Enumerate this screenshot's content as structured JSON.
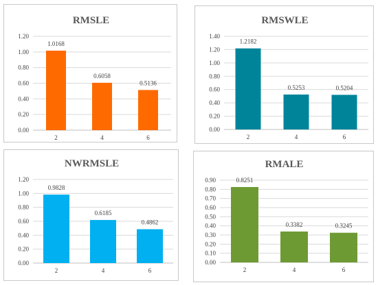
{
  "chart_data": [
    {
      "type": "bar",
      "title": "RMSLE",
      "categories": [
        "2",
        "4",
        "6"
      ],
      "values": [
        1.0168,
        0.6058,
        0.5136
      ],
      "ylim": [
        0,
        1.2
      ],
      "yticks": [
        "0.00",
        "0.20",
        "0.40",
        "0.60",
        "0.80",
        "1.00",
        "1.20"
      ],
      "ystep": 0.2,
      "color": "#FF6A00",
      "grid": true
    },
    {
      "type": "bar",
      "title": "RMSWLE",
      "categories": [
        "2",
        "4",
        "6"
      ],
      "values": [
        1.2182,
        0.5253,
        0.5204
      ],
      "ylim": [
        0,
        1.4
      ],
      "yticks": [
        "0.00",
        "0.20",
        "0.40",
        "0.60",
        "0.80",
        "1.00",
        "1.20",
        "1.40"
      ],
      "ystep": 0.2,
      "color": "#00849A",
      "grid": true
    },
    {
      "type": "bar",
      "title": "NWRMSLE",
      "categories": [
        "2",
        "4",
        "6"
      ],
      "values": [
        0.9828,
        0.6185,
        0.4862
      ],
      "ylim": [
        0,
        1.2
      ],
      "yticks": [
        "0.00",
        "0.20",
        "0.40",
        "0.60",
        "0.80",
        "1.00",
        "1.20"
      ],
      "ystep": 0.2,
      "color": "#00B0F0",
      "grid": true
    },
    {
      "type": "bar",
      "title": "RMALE",
      "categories": [
        "2",
        "4",
        "6"
      ],
      "values": [
        0.8251,
        0.3382,
        0.3245
      ],
      "ylim": [
        0,
        0.9
      ],
      "yticks": [
        "0.00",
        "0.10",
        "0.20",
        "0.30",
        "0.40",
        "0.50",
        "0.60",
        "0.70",
        "0.80",
        "0.90"
      ],
      "ystep": 0.1,
      "color": "#6E9A34",
      "grid": true
    }
  ]
}
